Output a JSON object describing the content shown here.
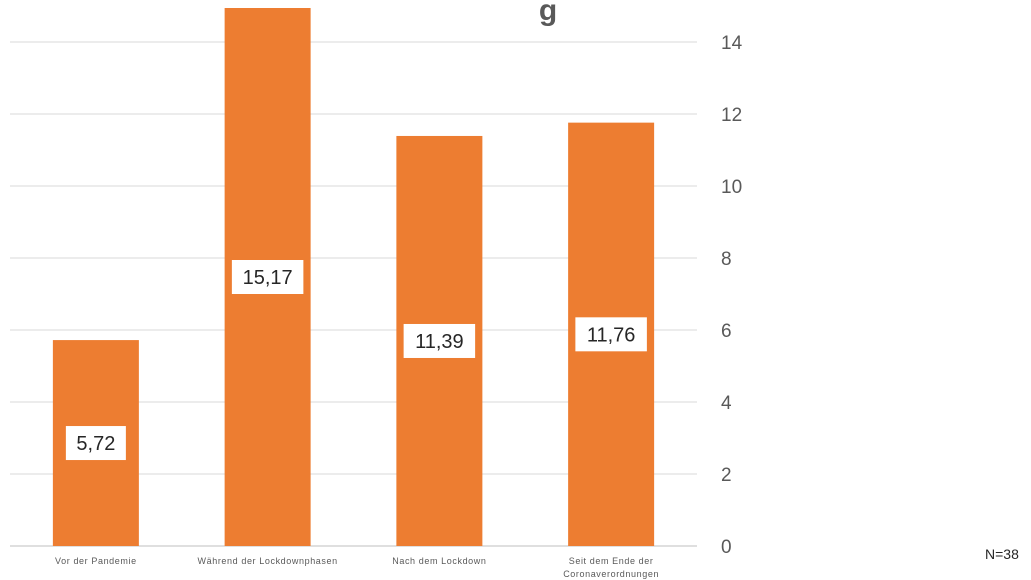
{
  "chart_data": {
    "type": "bar",
    "title_fragment": "g",
    "categories": [
      [
        "Vor der Pandemie"
      ],
      [
        "Während der Lockdownphasen"
      ],
      [
        "Nach dem Lockdown"
      ],
      [
        "Seit dem Ende der",
        "Coronaverordnungen"
      ]
    ],
    "values": [
      5.72,
      15.17,
      11.39,
      11.76
    ],
    "data_labels": [
      "5,72",
      "15,17",
      "11,39",
      "11,76"
    ],
    "ylim": [
      0,
      14
    ],
    "yticks": [
      0,
      2,
      4,
      6,
      8,
      10,
      12,
      14
    ],
    "y_axis_position": "right",
    "grid": true,
    "bar_color": "#ED7D31"
  },
  "footnote": "N=38"
}
